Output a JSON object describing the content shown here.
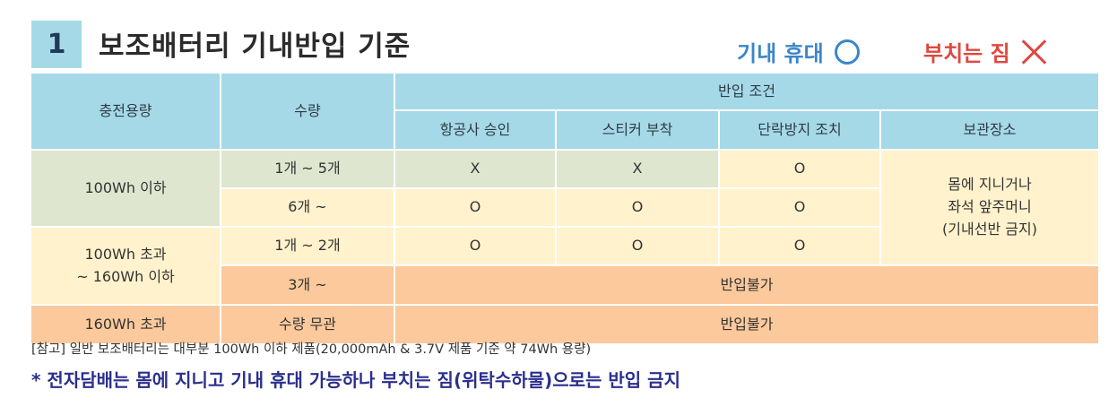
{
  "header": {
    "number": "1",
    "title": "보조배터리 기내반입 기준",
    "legend_carry": "기내 휴대",
    "legend_check": "부치는 짐"
  },
  "table": {
    "col_capacity": "충전용량",
    "col_quantity": "수량",
    "col_conditions": "반입 조건",
    "cond_airline": "항공사 승인",
    "cond_sticker": "스티커 부착",
    "cond_shortcircuit": "단락방지 조치",
    "cond_storage": "보관장소",
    "r1_capacity": "100Wh 이하",
    "r1a_qty": "1개 ~ 5개",
    "r1a_airline": "X",
    "r1a_sticker": "X",
    "r1a_short": "O",
    "r1b_qty": "6개 ~",
    "r1b_airline": "O",
    "r1b_sticker": "O",
    "r1b_short": "O",
    "storage_line1": "몸에 지니거나",
    "storage_line2": "좌석 앞주머니",
    "storage_line3": "(기내선반 금지)",
    "r2_capacity_line1": "100Wh 초과",
    "r2_capacity_line2": "~ 160Wh 이하",
    "r2a_qty": "1개 ~ 2개",
    "r2a_airline": "O",
    "r2a_sticker": "O",
    "r2a_short": "O",
    "r2b_qty": "3개 ~",
    "r2b_result": "반입불가",
    "r3_capacity": "160Wh 초과",
    "r3_qty": "수량 무관",
    "r3_result": "반입불가"
  },
  "notes": {
    "reference": "[참고] 일반 보조배터리는 대부분 100Wh 이하 제품(20,000mAh & 3.7V 제품 기준 약 74Wh 용량)",
    "ecig": "* 전자담배는 몸에 지니고 기내 휴대 가능하나 부치는 짐(위탁수하물)으로는 반입 금지"
  },
  "colors": {
    "header_blue": "#a6d9e8",
    "green": "#dfe6cf",
    "yellow": "#fff2cc",
    "orange": "#fbc99c",
    "carry_blue": "#3b86c9",
    "check_red": "#e0473f",
    "footnote_navy": "#2b2f8c"
  }
}
